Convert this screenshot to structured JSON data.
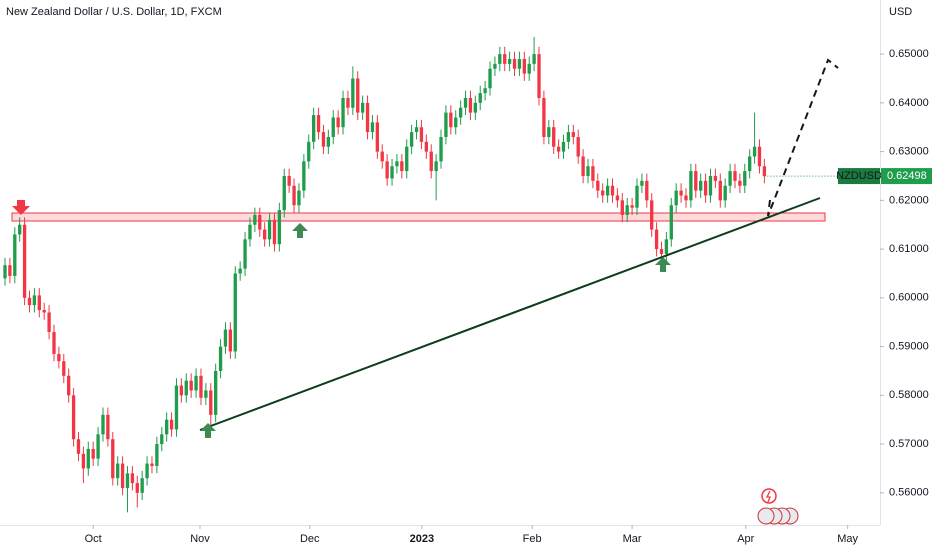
{
  "chart_data": {
    "type": "candlestick",
    "title": "New Zealand Dollar / U.S. Dollar, 1D, FXCM",
    "currency": "USD",
    "symbol": "NZDUSD",
    "up_color": "#1f9d4c",
    "down_color": "#f23645",
    "xlim": [
      -1.02,
      178.6
    ],
    "xticks": [
      {
        "value": 18,
        "label": "Oct"
      },
      {
        "value": 39.8,
        "label": "Nov"
      },
      {
        "value": 62.2,
        "label": "Dec"
      },
      {
        "value": 85.1,
        "label": "2023"
      },
      {
        "value": 107.6,
        "label": "Feb"
      },
      {
        "value": 128,
        "label": "Mar"
      },
      {
        "value": 151.2,
        "label": "Apr"
      },
      {
        "value": 172,
        "label": "May"
      }
    ],
    "ylim": [
      0.5534,
      0.6611
    ],
    "yticks": [
      {
        "value": 0.56,
        "label": "0.56000"
      },
      {
        "value": 0.57,
        "label": "0.57000"
      },
      {
        "value": 0.58,
        "label": "0.58000"
      },
      {
        "value": 0.59,
        "label": "0.59000"
      },
      {
        "value": 0.6,
        "label": "0.60000"
      },
      {
        "value": 0.61,
        "label": "0.61000"
      },
      {
        "value": 0.62,
        "label": "0.62000"
      },
      {
        "value": 0.63,
        "label": "0.63000"
      },
      {
        "value": 0.64,
        "label": "0.64000"
      },
      {
        "value": 0.65,
        "label": "0.65000"
      }
    ],
    "open": [
      0.604,
      0.6067,
      0.6045,
      0.613,
      0.615,
      0.6,
      0.5985,
      0.6005,
      0.5975,
      0.597,
      0.593,
      0.5885,
      0.587,
      0.584,
      0.58,
      0.571,
      0.568,
      0.565,
      0.569,
      0.567,
      0.572,
      0.576,
      0.571,
      0.563,
      0.566,
      0.561,
      0.564,
      0.562,
      0.56,
      0.563,
      0.566,
      0.5655,
      0.57,
      0.572,
      0.575,
      0.573,
      0.582,
      0.58,
      0.583,
      0.581,
      0.584,
      0.5795,
      0.581,
      0.576,
      0.585,
      0.59,
      0.5935,
      0.589,
      0.605,
      0.606,
      0.612,
      0.615,
      0.617,
      0.614,
      0.612,
      0.616,
      0.611,
      0.618,
      0.625,
      0.623,
      0.619,
      0.622,
      0.628,
      0.632,
      0.6375,
      0.634,
      0.631,
      0.633,
      0.637,
      0.635,
      0.641,
      0.639,
      0.645,
      0.638,
      0.64,
      0.634,
      0.636,
      0.63,
      0.628,
      0.6245,
      0.627,
      0.628,
      0.626,
      0.631,
      0.634,
      0.635,
      0.632,
      0.63,
      0.626,
      0.628,
      0.633,
      0.638,
      0.635,
      0.637,
      0.639,
      0.641,
      0.638,
      0.64,
      0.642,
      0.643,
      0.647,
      0.648,
      0.65,
      0.648,
      0.649,
      0.647,
      0.649,
      0.646,
      0.648,
      0.65,
      0.641,
      0.633,
      0.635,
      0.631,
      0.63,
      0.632,
      0.634,
      0.633,
      0.629,
      0.625,
      0.627,
      0.624,
      0.622,
      0.621,
      0.623,
      0.621,
      0.62,
      0.617,
      0.619,
      0.6185,
      0.623,
      0.624,
      0.62,
      0.614,
      0.61,
      0.609,
      0.612,
      0.619,
      0.622,
      0.621,
      0.62,
      0.626,
      0.622,
      0.624,
      0.621,
      0.625,
      0.624,
      0.62,
      0.623,
      0.626,
      0.624,
      0.623,
      0.626,
      0.629,
      0.631,
      0.627
    ],
    "high": [
      0.6082,
      0.6082,
      0.6145,
      0.6165,
      0.6165,
      0.6015,
      0.602,
      0.602,
      0.599,
      0.5985,
      0.5945,
      0.59,
      0.5885,
      0.5855,
      0.5815,
      0.5725,
      0.5695,
      0.5705,
      0.5705,
      0.5735,
      0.5775,
      0.5775,
      0.5725,
      0.5675,
      0.5675,
      0.5655,
      0.5655,
      0.5635,
      0.5645,
      0.5675,
      0.5675,
      0.5715,
      0.5735,
      0.5765,
      0.5765,
      0.5835,
      0.5835,
      0.5845,
      0.5845,
      0.5855,
      0.5855,
      0.5825,
      0.5825,
      0.5865,
      0.5915,
      0.595,
      0.595,
      0.6065,
      0.6075,
      0.6135,
      0.6165,
      0.6185,
      0.6185,
      0.6155,
      0.6175,
      0.6175,
      0.6195,
      0.6265,
      0.6265,
      0.6245,
      0.6235,
      0.6295,
      0.6335,
      0.639,
      0.639,
      0.6355,
      0.6345,
      0.6385,
      0.6385,
      0.6425,
      0.6425,
      0.6475,
      0.6465,
      0.6415,
      0.6415,
      0.6375,
      0.6375,
      0.6315,
      0.6295,
      0.6285,
      0.6295,
      0.6295,
      0.6325,
      0.6355,
      0.6365,
      0.6365,
      0.6335,
      0.6315,
      0.6295,
      0.6345,
      0.6395,
      0.6395,
      0.6385,
      0.6405,
      0.6425,
      0.6425,
      0.6415,
      0.6435,
      0.6445,
      0.6485,
      0.6495,
      0.6515,
      0.6515,
      0.6505,
      0.6505,
      0.6505,
      0.6505,
      0.6495,
      0.6535,
      0.6515,
      0.6425,
      0.6365,
      0.6365,
      0.6325,
      0.6335,
      0.6355,
      0.6355,
      0.6345,
      0.6305,
      0.6285,
      0.6285,
      0.6255,
      0.6235,
      0.6245,
      0.6245,
      0.6225,
      0.6215,
      0.6205,
      0.6205,
      0.6245,
      0.6255,
      0.6255,
      0.6215,
      0.6155,
      0.6115,
      0.6135,
      0.6205,
      0.6235,
      0.6235,
      0.6225,
      0.6275,
      0.6275,
      0.6255,
      0.6255,
      0.6265,
      0.6265,
      0.6255,
      0.6245,
      0.6275,
      0.6275,
      0.6255,
      0.6275,
      0.6305,
      0.638,
      0.6325,
      0.6285
    ],
    "low": [
      0.6025,
      0.603,
      0.603,
      0.6115,
      0.5985,
      0.597,
      0.597,
      0.596,
      0.5955,
      0.5915,
      0.587,
      0.5855,
      0.5825,
      0.5785,
      0.5695,
      0.5665,
      0.562,
      0.5635,
      0.5655,
      0.5655,
      0.5705,
      0.5695,
      0.5615,
      0.5615,
      0.5595,
      0.556,
      0.5605,
      0.557,
      0.5585,
      0.5615,
      0.564,
      0.564,
      0.5685,
      0.5705,
      0.5715,
      0.5715,
      0.5785,
      0.5785,
      0.5795,
      0.5795,
      0.578,
      0.578,
      0.5735,
      0.5745,
      0.5835,
      0.5885,
      0.5875,
      0.5875,
      0.6035,
      0.6045,
      0.6105,
      0.6135,
      0.6125,
      0.6105,
      0.6105,
      0.6095,
      0.6095,
      0.6165,
      0.6215,
      0.6175,
      0.6175,
      0.6205,
      0.6265,
      0.6305,
      0.6325,
      0.6295,
      0.6295,
      0.6315,
      0.6335,
      0.6335,
      0.6375,
      0.6375,
      0.6365,
      0.6365,
      0.6325,
      0.6325,
      0.6285,
      0.6265,
      0.623,
      0.623,
      0.6255,
      0.6245,
      0.6245,
      0.6295,
      0.6325,
      0.6305,
      0.6285,
      0.6245,
      0.62,
      0.6265,
      0.6315,
      0.6335,
      0.6335,
      0.6355,
      0.6375,
      0.6365,
      0.6365,
      0.6385,
      0.6405,
      0.6415,
      0.6455,
      0.6465,
      0.6465,
      0.6465,
      0.6455,
      0.6455,
      0.6445,
      0.6445,
      0.6465,
      0.6395,
      0.6315,
      0.6315,
      0.6295,
      0.6285,
      0.6285,
      0.6305,
      0.6315,
      0.6275,
      0.6235,
      0.6235,
      0.6225,
      0.6205,
      0.6195,
      0.6195,
      0.6195,
      0.6185,
      0.6155,
      0.6155,
      0.617,
      0.617,
      0.6215,
      0.6185,
      0.6125,
      0.6085,
      0.6075,
      0.6075,
      0.6105,
      0.6175,
      0.6195,
      0.6185,
      0.6185,
      0.6205,
      0.6205,
      0.6195,
      0.6195,
      0.6225,
      0.6185,
      0.6185,
      0.6215,
      0.6225,
      0.6215,
      0.6215,
      0.6245,
      0.6275,
      0.6255,
      0.6235
    ],
    "close": [
      0.6067,
      0.6045,
      0.613,
      0.615,
      0.6,
      0.5985,
      0.6005,
      0.5975,
      0.597,
      0.593,
      0.5885,
      0.587,
      0.584,
      0.58,
      0.571,
      0.568,
      0.565,
      0.569,
      0.567,
      0.572,
      0.576,
      0.571,
      0.563,
      0.566,
      0.561,
      0.564,
      0.562,
      0.56,
      0.563,
      0.566,
      0.5655,
      0.57,
      0.572,
      0.575,
      0.573,
      0.582,
      0.58,
      0.583,
      0.581,
      0.584,
      0.5795,
      0.581,
      0.576,
      0.585,
      0.59,
      0.5935,
      0.589,
      0.605,
      0.606,
      0.612,
      0.615,
      0.617,
      0.614,
      0.612,
      0.616,
      0.611,
      0.618,
      0.625,
      0.623,
      0.619,
      0.622,
      0.628,
      0.632,
      0.6375,
      0.634,
      0.631,
      0.633,
      0.637,
      0.635,
      0.641,
      0.639,
      0.645,
      0.638,
      0.64,
      0.634,
      0.636,
      0.63,
      0.628,
      0.6245,
      0.627,
      0.628,
      0.626,
      0.631,
      0.634,
      0.635,
      0.632,
      0.63,
      0.626,
      0.628,
      0.633,
      0.638,
      0.635,
      0.637,
      0.639,
      0.641,
      0.638,
      0.64,
      0.642,
      0.643,
      0.647,
      0.648,
      0.65,
      0.648,
      0.649,
      0.647,
      0.649,
      0.646,
      0.648,
      0.65,
      0.641,
      0.633,
      0.635,
      0.631,
      0.63,
      0.632,
      0.634,
      0.633,
      0.629,
      0.625,
      0.627,
      0.624,
      0.622,
      0.621,
      0.623,
      0.621,
      0.62,
      0.617,
      0.619,
      0.6185,
      0.623,
      0.624,
      0.62,
      0.614,
      0.61,
      0.609,
      0.612,
      0.619,
      0.622,
      0.621,
      0.62,
      0.626,
      0.622,
      0.624,
      0.621,
      0.625,
      0.624,
      0.62,
      0.623,
      0.626,
      0.624,
      0.623,
      0.626,
      0.629,
      0.631,
      0.627,
      0.62498
    ]
  }
}
